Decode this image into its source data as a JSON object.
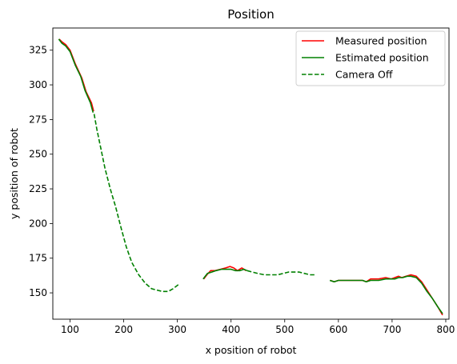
{
  "chart_data": {
    "type": "line",
    "title": "Position",
    "xlabel": "x position of robot",
    "ylabel": "y position of robot",
    "xlim": [
      68,
      806
    ],
    "ylim": [
      131,
      341
    ],
    "xticks": [
      100,
      200,
      300,
      400,
      500,
      600,
      700,
      800
    ],
    "yticks": [
      150,
      175,
      200,
      225,
      250,
      275,
      300,
      325
    ],
    "grid": false,
    "legend_position": "top-right",
    "series": [
      {
        "name": "Measured position",
        "color": "#ff0000",
        "style": "solid",
        "segments": [
          [
            [
              80,
              333
            ],
            [
              85,
              331
            ],
            [
              92,
              329
            ],
            [
              100,
              325
            ],
            [
              110,
              315
            ],
            [
              122,
              305
            ],
            [
              130,
              295
            ],
            [
              140,
              287
            ],
            [
              144,
              281
            ]
          ],
          [
            [
              349,
              160
            ],
            [
              355,
              163
            ],
            [
              362,
              166
            ],
            [
              370,
              166
            ],
            [
              380,
              167
            ],
            [
              390,
              168
            ],
            [
              398,
              169
            ],
            [
              405,
              168
            ],
            [
              412,
              166
            ],
            [
              420,
              168
            ],
            [
              428,
              166
            ]
          ],
          [
            [
              585,
              159
            ],
            [
              592,
              158
            ],
            [
              600,
              159
            ],
            [
              615,
              159
            ],
            [
              630,
              159
            ],
            [
              645,
              159
            ],
            [
              652,
              158
            ],
            [
              660,
              160
            ],
            [
              675,
              160
            ],
            [
              688,
              161
            ],
            [
              698,
              160
            ],
            [
              705,
              161
            ],
            [
              712,
              162
            ],
            [
              718,
              161
            ],
            [
              726,
              162
            ],
            [
              735,
              163
            ],
            [
              745,
              162
            ],
            [
              755,
              158
            ],
            [
              765,
              152
            ],
            [
              775,
              146
            ],
            [
              785,
              140
            ],
            [
              794,
              134
            ]
          ]
        ]
      },
      {
        "name": "Estimated position",
        "color": "#008000",
        "style": "solid",
        "segments": [
          [
            [
              79,
              333
            ],
            [
              85,
              330
            ],
            [
              92,
              328
            ],
            [
              100,
              324
            ],
            [
              110,
              314
            ],
            [
              120,
              306
            ],
            [
              128,
              296
            ],
            [
              138,
              287
            ],
            [
              143,
              280
            ]
          ],
          [
            [
              348,
              160
            ],
            [
              356,
              164
            ],
            [
              364,
              165
            ],
            [
              372,
              166
            ],
            [
              382,
              167
            ],
            [
              392,
              167
            ],
            [
              400,
              167
            ],
            [
              408,
              166
            ],
            [
              416,
              166
            ],
            [
              424,
              167
            ],
            [
              430,
              166
            ]
          ],
          [
            [
              584,
              159
            ],
            [
              592,
              158
            ],
            [
              600,
              159
            ],
            [
              615,
              159
            ],
            [
              630,
              159
            ],
            [
              645,
              159
            ],
            [
              652,
              158
            ],
            [
              660,
              159
            ],
            [
              675,
              159
            ],
            [
              688,
              160
            ],
            [
              698,
              160
            ],
            [
              705,
              160
            ],
            [
              712,
              161
            ],
            [
              720,
              161
            ],
            [
              728,
              162
            ],
            [
              735,
              162
            ],
            [
              745,
              161
            ],
            [
              755,
              157
            ],
            [
              765,
              151
            ],
            [
              775,
              146
            ],
            [
              785,
              140
            ],
            [
              794,
              135
            ]
          ]
        ]
      },
      {
        "name": "Camera Off",
        "color": "#008000",
        "style": "dashed",
        "segments": [
          [
            [
              145,
              279
            ],
            [
              150,
              268
            ],
            [
              157,
              255
            ],
            [
              165,
              240
            ],
            [
              175,
              225
            ],
            [
              185,
              212
            ],
            [
              195,
              197
            ],
            [
              205,
              183
            ],
            [
              215,
              172
            ],
            [
              228,
              163
            ],
            [
              240,
              157
            ],
            [
              252,
              153
            ],
            [
              262,
              152
            ],
            [
              272,
              151
            ],
            [
              283,
              151
            ],
            [
              292,
              153
            ],
            [
              302,
              156
            ]
          ],
          [
            [
              430,
              166
            ],
            [
              440,
              165
            ],
            [
              450,
              164
            ],
            [
              462,
              163
            ],
            [
              475,
              163
            ],
            [
              487,
              163
            ],
            [
              497,
              164
            ],
            [
              507,
              165
            ],
            [
              517,
              165
            ],
            [
              527,
              165
            ],
            [
              537,
              164
            ],
            [
              547,
              163
            ],
            [
              557,
              163
            ]
          ]
        ]
      }
    ]
  }
}
